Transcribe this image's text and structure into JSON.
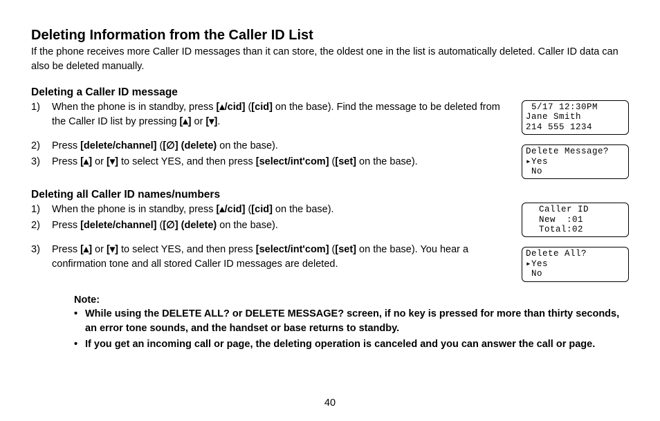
{
  "page_number": "40",
  "title": "Deleting Information from the Caller ID List",
  "intro": "If the phone receives more Caller ID messages than it can store, the oldest one in the list is automatically deleted. Caller ID data can also be deleted manually.",
  "sectionA": {
    "heading": "Deleting a Caller ID message",
    "step1a": "When the phone is in standby, press ",
    "step1b_bold": "[▴/cid]",
    "step1c": " (",
    "step1d_bold": "[cid]",
    "step1e": " on the base). Find the message to be deleted from the Caller ID list by pressing ",
    "step1f_bold": "[▴]",
    "step1g": " or ",
    "step1h_bold": "[▾]",
    "step1i": ".",
    "step2a": "Press ",
    "step2b_bold": "[delete/channel]",
    "step2c": " (",
    "step2d_bold": "[∅] (delete)",
    "step2e": " on the base).",
    "step3a": "Press ",
    "step3b_bold": "[▴]",
    "step3c": " or ",
    "step3d_bold": "[▾]",
    "step3e": " to select YES, and then press ",
    "step3f_bold": "[select/int'com]",
    "step3g": " (",
    "step3h_bold": "[set]",
    "step3i": " on the base)."
  },
  "sectionB": {
    "heading": "Deleting all Caller ID names/numbers",
    "step1a": "When the phone is in standby, press ",
    "step1b_bold": "[▴/cid]",
    "step1c": " (",
    "step1d_bold": "[cid]",
    "step1e": " on the base).",
    "step2a": "Press ",
    "step2b_bold": "[delete/channel]",
    "step2c": " (",
    "step2d_bold": "[∅] (delete)",
    "step2e": " on the base).",
    "step3a": "Press ",
    "step3b_bold": "[▴]",
    "step3c": " or ",
    "step3d_bold": "[▾]",
    "step3e": " to select YES, and then press ",
    "step3f_bold": "[select/int'com]",
    "step3g": " (",
    "step3h_bold": "[set]",
    "step3i": " on the base). You hear a confirmation tone and all stored Caller ID messages are deleted."
  },
  "note": {
    "head": "Note:",
    "b1": "While using the DELETE ALL? or DELETE MESSAGE? screen, if no key is pressed for more than thirty seconds, an error tone sounds, and the handset or base returns to standby.",
    "b2": "If you get an incoming call or page, the deleting operation is canceled and you can answer the call or page."
  },
  "screens": {
    "s1": " 5/17 12:30PM\nJane Smith\n214 555 1234",
    "s2": "Delete Message?\n▸Yes\n No",
    "s3": "Caller ID\nNew  :01\nTotal:02",
    "s4": "Delete All?\n▸Yes\n No"
  }
}
